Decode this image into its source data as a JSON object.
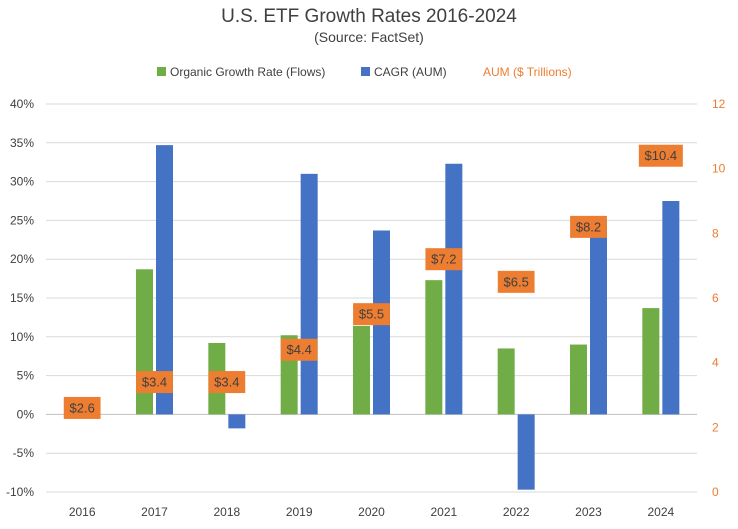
{
  "chart_data": {
    "type": "bar",
    "title": "U.S. ETF Growth Rates 2016-2024",
    "subtitle": "(Source: FactSet)",
    "categories": [
      "2016",
      "2017",
      "2018",
      "2019",
      "2020",
      "2021",
      "2022",
      "2023",
      "2024"
    ],
    "series": [
      {
        "name": "Organic Growth Rate (Flows)",
        "color": "#70AD47",
        "values": [
          null,
          18.7,
          9.2,
          10.2,
          11.4,
          17.3,
          8.5,
          9.0,
          13.7
        ]
      },
      {
        "name": "CAGR (AUM)",
        "color": "#4472C4",
        "values": [
          null,
          34.7,
          -1.8,
          31.0,
          23.7,
          32.3,
          -9.7,
          24.9,
          27.5
        ]
      }
    ],
    "aum": {
      "name": "AUM ($ Trillions)",
      "color": "#ED7D31",
      "values": [
        2.6,
        3.4,
        3.4,
        4.4,
        5.5,
        7.2,
        6.5,
        8.2,
        10.4
      ],
      "labels": [
        "$2.6",
        "$3.4",
        "$3.4",
        "$4.4",
        "$5.5",
        "$7.2",
        "$6.5",
        "$8.2",
        "$10.4"
      ]
    },
    "y_left": {
      "min": -10,
      "max": 40,
      "step": 5,
      "tick_labels": [
        "-10%",
        "-5%",
        "0%",
        "5%",
        "10%",
        "15%",
        "20%",
        "25%",
        "30%",
        "35%",
        "40%"
      ]
    },
    "y_right": {
      "min": 0,
      "max": 12,
      "step": 2,
      "tick_labels": [
        "0",
        "2",
        "4",
        "6",
        "8",
        "10",
        "12"
      ]
    },
    "grid": true,
    "legend_position": "top"
  }
}
